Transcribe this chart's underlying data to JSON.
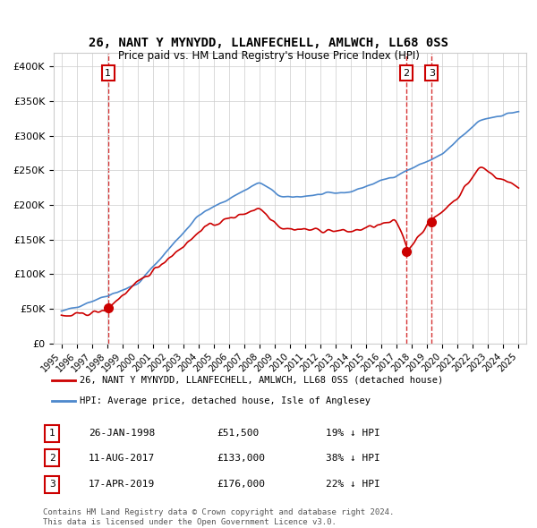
{
  "title": "26, NANT Y MYNYDD, LLANFECHELL, AMLWCH, LL68 0SS",
  "subtitle": "Price paid vs. HM Land Registry's House Price Index (HPI)",
  "legend_label_red": "26, NANT Y MYNYDD, LLANFECHELL, AMLWCH, LL68 0SS (detached house)",
  "legend_label_blue": "HPI: Average price, detached house, Isle of Anglesey",
  "footer1": "Contains HM Land Registry data © Crown copyright and database right 2024.",
  "footer2": "This data is licensed under the Open Government Licence v3.0.",
  "sales": [
    {
      "num": 1,
      "date": "26-JAN-1998",
      "price": 51500,
      "pct": "19% ↓ HPI",
      "year_x": 1998.07
    },
    {
      "num": 2,
      "date": "11-AUG-2017",
      "price": 133000,
      "pct": "38% ↓ HPI",
      "year_x": 2017.61
    },
    {
      "num": 3,
      "date": "17-APR-2019",
      "price": 176000,
      "pct": "22% ↓ HPI",
      "year_x": 2019.29
    }
  ],
  "red_color": "#cc0000",
  "blue_color": "#4d88cc",
  "marker_line_color": "#cc0000",
  "grid_color": "#cccccc",
  "background_color": "#ffffff",
  "ylim": [
    0,
    420000
  ],
  "xlim_start": 1994.5,
  "xlim_end": 2025.5,
  "yticks": [
    0,
    50000,
    100000,
    150000,
    200000,
    250000,
    300000,
    350000,
    400000
  ],
  "xticks": [
    1995,
    1996,
    1997,
    1998,
    1999,
    2000,
    2001,
    2002,
    2003,
    2004,
    2005,
    2006,
    2007,
    2008,
    2009,
    2010,
    2011,
    2012,
    2013,
    2014,
    2015,
    2016,
    2017,
    2018,
    2019,
    2020,
    2021,
    2022,
    2023,
    2024,
    2025
  ]
}
